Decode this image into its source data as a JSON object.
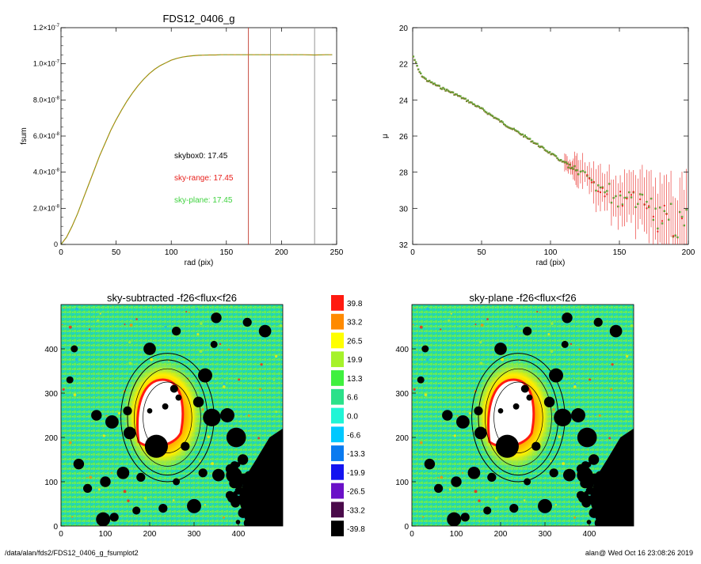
{
  "footer": {
    "left": "/data/alan/fds2/FDS12_0406_g_fsumplot2",
    "right": "alan@  Wed Oct 16 23:08:26 2019"
  },
  "chart_data": [
    {
      "type": "line",
      "title": "FDS12_0406_g",
      "xlabel": "rad (pix)",
      "ylabel": "fsum",
      "xlim": [
        0,
        250
      ],
      "ylim": [
        0,
        1.2e-07
      ],
      "xticks": [
        "0",
        "50",
        "100",
        "150",
        "200",
        "250"
      ],
      "yticks": [
        {
          "mant": "0",
          "exp": ""
        },
        {
          "mant": "2.0×10",
          "exp": "-8"
        },
        {
          "mant": "4.0×10",
          "exp": "-8"
        },
        {
          "mant": "6.0×10",
          "exp": "-8"
        },
        {
          "mant": "8.0×10",
          "exp": "-8"
        },
        {
          "mant": "1.0×10",
          "exp": "-7"
        },
        {
          "mant": "1.2×10",
          "exp": "-7"
        }
      ],
      "x": [
        0,
        5,
        10,
        15,
        20,
        25,
        30,
        35,
        40,
        45,
        50,
        55,
        60,
        65,
        70,
        75,
        80,
        85,
        90,
        95,
        100,
        105,
        110,
        115,
        120,
        125,
        130,
        135,
        140,
        145,
        150,
        160,
        170,
        180,
        190,
        200,
        210,
        220,
        230,
        240,
        246
      ],
      "series": [
        {
          "color": "#b8860b",
          "values": [
            0,
            4e-09,
            1e-08,
            1.7e-08,
            2.5e-08,
            3.3e-08,
            4.1e-08,
            4.9e-08,
            5.6e-08,
            6.3e-08,
            6.9e-08,
            7.45e-08,
            7.95e-08,
            8.4e-08,
            8.8e-08,
            9.15e-08,
            9.45e-08,
            9.7e-08,
            9.9e-08,
            1.005e-07,
            1.02e-07,
            1.03e-07,
            1.037e-07,
            1.042e-07,
            1.045e-07,
            1.047e-07,
            1.048e-07,
            1.049e-07,
            1.049e-07,
            1.05e-07,
            1.05e-07,
            1.05e-07,
            1.05e-07,
            1.05e-07,
            1.05e-07,
            1.05e-07,
            1.05e-07,
            1.05e-07,
            1.049e-07,
            1.05e-07,
            1.05e-07
          ]
        }
      ],
      "vlines": [
        {
          "x": 170,
          "color": "#c0392b"
        },
        {
          "x": 190,
          "color": "#8a8a8a"
        },
        {
          "x": 230,
          "color": "#8a8a8a"
        }
      ],
      "annotations": [
        {
          "text": "skybox0: 17.45",
          "color": "#000000"
        },
        {
          "text": "sky-range: 17.45",
          "color": "#e8211d"
        },
        {
          "text": "sky-plane: 17.45",
          "color": "#3fd23f"
        }
      ]
    },
    {
      "type": "scatter",
      "title": "",
      "xlabel": "rad (pix)",
      "ylabel": "μ",
      "xlim": [
        0,
        200
      ],
      "ylim": [
        32,
        20
      ],
      "xticks": [
        "0",
        "50",
        "100",
        "150",
        "200"
      ],
      "yticks": [
        "20",
        "22",
        "24",
        "26",
        "28",
        "30",
        "32"
      ],
      "profile": {
        "x": [
          0,
          2,
          4,
          6,
          8,
          10,
          15,
          20,
          30,
          40,
          50,
          60,
          70,
          80,
          90,
          100,
          110,
          120,
          130,
          140,
          150,
          160,
          170,
          180,
          190,
          199
        ],
        "y": [
          21.5,
          21.9,
          22.3,
          22.6,
          22.75,
          22.9,
          23.1,
          23.3,
          23.65,
          24.05,
          24.5,
          25.0,
          25.5,
          25.95,
          26.45,
          26.95,
          27.5,
          28.0,
          28.5,
          29.0,
          29.4,
          29.8,
          30.1,
          30.4,
          30.7,
          30.9
        ]
      },
      "colors": {
        "sky_range": "#e8211d",
        "sky_plane": "#3fd23f",
        "skybox": "#8a6d2b"
      }
    },
    {
      "type": "heatmap",
      "title": "sky-subtracted -f26<flux<f26",
      "xlim": [
        0,
        500
      ],
      "ylim": [
        0,
        500
      ],
      "xticks": [
        "0",
        "100",
        "200",
        "300",
        "400"
      ],
      "yticks": [
        "0",
        "100",
        "200",
        "300",
        "400"
      ]
    },
    {
      "type": "heatmap",
      "title": "sky-plane -f26<flux<f26",
      "xlim": [
        0,
        500
      ],
      "ylim": [
        0,
        500
      ],
      "xticks": [
        "0",
        "100",
        "200",
        "300",
        "400"
      ],
      "yticks": [
        "0",
        "100",
        "200",
        "300",
        "400"
      ]
    },
    {
      "type": "colorbar",
      "labels": [
        "39.8",
        "33.2",
        "26.5",
        "19.9",
        "13.3",
        "6.6",
        "0.0",
        "-6.6",
        "-13.3",
        "-19.9",
        "-26.5",
        "-33.2",
        "-39.8"
      ],
      "colors": [
        "#ff1a10",
        "#ff8a00",
        "#ffff00",
        "#a6f22a",
        "#3ff03f",
        "#2be18a",
        "#20f5d6",
        "#00c8ff",
        "#0a7af0",
        "#1414f0",
        "#6a10c8",
        "#4a0a4a",
        "#000000"
      ]
    }
  ]
}
